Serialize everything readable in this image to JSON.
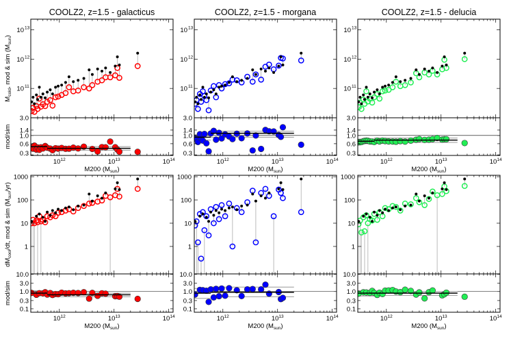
{
  "chart_data": {
    "type": "scatter",
    "x_scale": "log",
    "xlim": [
      300000000000.0,
      120000000000000.0
    ],
    "x_ticks": [
      {
        "base": "10",
        "exp": "12",
        "value": 1000000000000.0
      },
      {
        "base": "10",
        "exp": "13",
        "value": 10000000000000.0
      },
      {
        "base": "10",
        "exp": "14",
        "value": 100000000000000.0
      }
    ],
    "x_label": {
      "main": "M200 (M",
      "sub": "sun",
      "end": ")"
    },
    "columns": [
      {
        "title": "COOLZ2, z=1.5 - galacticus",
        "model": "galacticus",
        "color": "#ff0000"
      },
      {
        "title": "COOLZ2, z=1.5 - morgana",
        "model": "morgana",
        "color": "#0000ff"
      },
      {
        "title": "COOLZ2, z=1.5 - delucia",
        "model": "delucia",
        "color": "#22ee55"
      }
    ],
    "sim_color": "#000000",
    "connector_color": "#aaaaaa",
    "halo_M200": [
      310000000000.0,
      330000000000.0,
      350000000000.0,
      380000000000.0,
      400000000000.0,
      430000000000.0,
      460000000000.0,
      500000000000.0,
      550000000000.0,
      600000000000.0,
      680000000000.0,
      750000000000.0,
      850000000000.0,
      950000000000.0,
      1100000000000.0,
      1300000000000.0,
      1500000000000.0,
      1800000000000.0,
      2200000000000.0,
      2800000000000.0,
      3500000000000.0,
      4000000000000.0,
      5000000000000.0,
      6000000000000.0,
      7000000000000.0,
      8500000000000.0,
      10500000000000.0,
      11500000000000.0,
      12500000000000.0,
      27000000000000.0
    ],
    "rows": [
      {
        "quantity": "Mcold",
        "y_label": {
          "a": "M",
          "sub1": "cold",
          "b": ", mod & sim (M",
          "sub2": "sun",
          "c": ")"
        },
        "y_scale": "log",
        "ylim": [
          10000000000.0,
          23000000000000.0
        ],
        "y_ticks": [
          {
            "base": "10",
            "exp": "11",
            "value": 100000000000.0
          },
          {
            "base": "10",
            "exp": "12",
            "value": 1000000000000.0
          },
          {
            "base": "10",
            "exp": "13",
            "value": 10000000000000.0
          }
        ],
        "ratio_label": "mod/sim",
        "ratio_scale": "log",
        "ratio_ylim": [
          0.29,
          3.0
        ],
        "ratio_ticks": [
          {
            "label": "3.0",
            "value": 3.0
          },
          {
            "label": "1.4",
            "value": 1.4
          },
          {
            "label": "1.0",
            "value": 1.0
          },
          {
            "label": "0.6",
            "value": 0.6
          },
          {
            "label": "0.3",
            "value": 0.3
          }
        ],
        "sim": [
          35000000000.0,
          50000000000.0,
          30000000000.0,
          60000000000.0,
          42000000000.0,
          110000000000.0,
          50000000000.0,
          65000000000.0,
          48000000000.0,
          75000000000.0,
          90000000000.0,
          65000000000.0,
          110000000000.0,
          120000000000.0,
          130000000000.0,
          160000000000.0,
          250000000000.0,
          170000000000.0,
          190000000000.0,
          220000000000.0,
          430000000000.0,
          300000000000.0,
          460000000000.0,
          390000000000.0,
          500000000000.0,
          350000000000.0,
          580000000000.0,
          1200000000000.0,
          630000000000.0,
          1600000000000.0
        ],
        "mod": {
          "galacticus": [
            17000000000.0,
            22000000000.0,
            16000000000.0,
            25000000000.0,
            20000000000.0,
            45000000000.0,
            24000000000.0,
            29000000000.0,
            25000000000.0,
            35000000000.0,
            40000000000.0,
            26000000000.0,
            50000000000.0,
            53000000000.0,
            60000000000.0,
            70000000000.0,
            110000000000.0,
            80000000000.0,
            85000000000.0,
            110000000000.0,
            100000000000.0,
            130000000000.0,
            170000000000.0,
            190000000000.0,
            240000000000.0,
            240000000000.0,
            280000000000.0,
            500000000000.0,
            230000000000.0,
            580000000000.0
          ],
          "morgana": [
            30000000000.0,
            40000000000.0,
            20000000000.0,
            65000000000.0,
            35000000000.0,
            80000000000.0,
            55000000000.0,
            40000000000.0,
            18000000000.0,
            85000000000.0,
            120000000000.0,
            50000000000.0,
            130000000000.0,
            100000000000.0,
            140000000000.0,
            150000000000.0,
            200000000000.0,
            190000000000.0,
            160000000000.0,
            250000000000.0,
            170000000000.0,
            300000000000.0,
            200000000000.0,
            550000000000.0,
            650000000000.0,
            450000000000.0,
            600000000000.0,
            1100000000000.0,
            1050000000000.0,
            900000000000.0
          ],
          "delucia": [
            23000000000.0,
            33000000000.0,
            20000000000.0,
            42000000000.0,
            30000000000.0,
            80000000000.0,
            36000000000.0,
            45000000000.0,
            33000000000.0,
            50000000000.0,
            65000000000.0,
            45000000000.0,
            80000000000.0,
            85000000000.0,
            90000000000.0,
            110000000000.0,
            170000000000.0,
            120000000000.0,
            130000000000.0,
            160000000000.0,
            330000000000.0,
            240000000000.0,
            350000000000.0,
            300000000000.0,
            400000000000.0,
            300000000000.0,
            450000000000.0,
            950000000000.0,
            500000000000.0,
            1000000000000.0
          ]
        },
        "binned_median": {
          "galacticus": [
            {
              "x": [
                300000000000.0,
                600000000000.0
              ],
              "median": 0.5,
              "lo": 0.45,
              "hi": 0.55
            },
            {
              "x": [
                600000000000.0,
                20000000000000.0
              ],
              "median": 0.45,
              "lo": 0.4,
              "hi": 0.5
            }
          ],
          "morgana": [
            {
              "x": [
                300000000000.0,
                600000000000.0
              ],
              "median": 0.9,
              "lo": 0.75,
              "hi": 1.05
            },
            {
              "x": [
                600000000000.0,
                20000000000000.0
              ],
              "median": 1.15,
              "lo": 0.9,
              "hi": 1.3
            }
          ],
          "delucia": [
            {
              "x": [
                300000000000.0,
                600000000000.0
              ],
              "median": 0.7,
              "lo": 0.6,
              "hi": 0.8
            },
            {
              "x": [
                600000000000.0,
                20000000000000.0
              ],
              "median": 0.75,
              "lo": 0.65,
              "hi": 0.85
            }
          ]
        }
      },
      {
        "quantity": "dMcool/dt",
        "y_label": {
          "a": "dM",
          "sub1": "cool",
          "b": "/dt, mod & sim (M",
          "sub2": "sun",
          "c": "/yr)"
        },
        "y_scale": "log",
        "ylim": [
          0.066,
          1150
        ],
        "y_ticks": [
          {
            "base": "1",
            "exp": "",
            "value": 1
          },
          {
            "base": "10",
            "exp": "",
            "value": 10
          },
          {
            "base": "100",
            "exp": "",
            "value": 100
          },
          {
            "base": "1000",
            "exp": "",
            "value": 1000
          }
        ],
        "ratio_label": "mod/sim",
        "ratio_scale": "log",
        "ratio_ylim": [
          0.063,
          10.5
        ],
        "ratio_ticks": [
          {
            "label": "10.0",
            "value": 10
          },
          {
            "label": "3.0",
            "value": 3.0
          },
          {
            "label": "1.0",
            "value": 1.0
          },
          {
            "label": "0.3",
            "value": 0.3
          },
          {
            "label": "0.1",
            "value": 0.1
          }
        ],
        "sim": [
          12,
          0.01,
          0.01,
          20,
          0.01,
          25,
          0.01,
          18,
          12,
          30,
          22,
          35,
          28,
          40,
          35,
          45,
          50,
          38,
          55,
          60,
          180,
          90,
          150,
          120,
          200,
          0.01,
          300,
          550,
          280,
          800
        ],
        "mod": {
          "galacticus": [
            10,
            14,
            10,
            13,
            11,
            20,
            12,
            14,
            11,
            20,
            18,
            22,
            20,
            28,
            30,
            35,
            40,
            32,
            45,
            55,
            70,
            75,
            85,
            95,
            150,
            130,
            160,
            300,
            140,
            300
          ],
          "morgana": [
            8,
            12,
            1.5,
            25,
            0.3,
            30,
            5,
            20,
            3,
            40,
            10,
            50,
            15,
            60,
            20,
            70,
            1.0,
            45,
            30,
            80,
            250,
            1.5,
            200,
            300,
            150,
            20,
            280,
            200,
            120,
            30
          ],
          "delucia": [
            9,
            13,
            4,
            18,
            4.5,
            22,
            10,
            15,
            13,
            25,
            14,
            30,
            20,
            45,
            40,
            55,
            50,
            35,
            70,
            65,
            120,
            80,
            60,
            110,
            230,
            160,
            180,
            380,
            240,
            400
          ]
        },
        "binned_median": {
          "galacticus": [
            {
              "x": [
                300000000000.0,
                600000000000.0
              ],
              "median": 0.8,
              "lo": 0.6,
              "hi": 1.1
            },
            {
              "x": [
                600000000000.0,
                20000000000000.0
              ],
              "median": 0.65,
              "lo": 0.5,
              "hi": 0.8
            }
          ],
          "morgana": [
            {
              "x": [
                300000000000.0,
                600000000000.0
              ],
              "median": 0.8,
              "lo": 0.4,
              "hi": 1.5
            },
            {
              "x": [
                600000000000.0,
                20000000000000.0
              ],
              "median": 0.9,
              "lo": 0.5,
              "hi": 1.8
            }
          ],
          "delucia": [
            {
              "x": [
                300000000000.0,
                600000000000.0
              ],
              "median": 0.8,
              "lo": 0.55,
              "hi": 1.1
            },
            {
              "x": [
                600000000000.0,
                20000000000000.0
              ],
              "median": 0.8,
              "lo": 0.6,
              "hi": 1.0
            }
          ]
        }
      }
    ]
  }
}
